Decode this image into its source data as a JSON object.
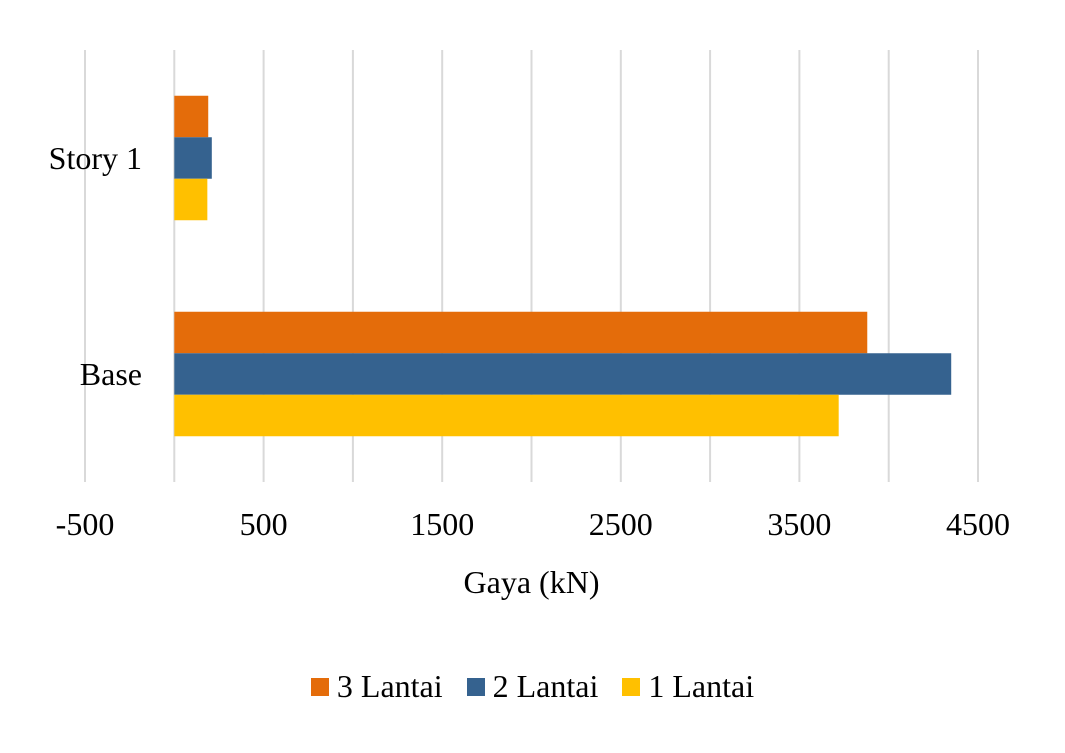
{
  "chart_data": {
    "type": "bar",
    "orientation": "horizontal",
    "categories": [
      "Story 1",
      "Base"
    ],
    "series": [
      {
        "name": "3 Lantai",
        "color": "#E46C0A",
        "values": [
          190,
          3880
        ]
      },
      {
        "name": "2 Lantai",
        "color": "#35628F",
        "values": [
          210,
          4350
        ]
      },
      {
        "name": "1 Lantai",
        "color": "#FFC000",
        "values": [
          185,
          3720
        ]
      }
    ],
    "xlabel": "Gaya (kN)",
    "ylabel": "",
    "xlim": [
      -500,
      4500
    ],
    "xticks": [
      -500,
      500,
      1500,
      2500,
      3500,
      4500
    ],
    "xtick_labels": [
      "-500",
      "500",
      "1500",
      "2500",
      "3500",
      "4500"
    ],
    "gridlines": [
      -500,
      0,
      500,
      1000,
      1500,
      2000,
      2500,
      3000,
      3500,
      4000,
      4500
    ],
    "grid": true,
    "legend_position": "bottom",
    "colors": {
      "grid": "#D9D9D9",
      "text": "#000000"
    }
  }
}
